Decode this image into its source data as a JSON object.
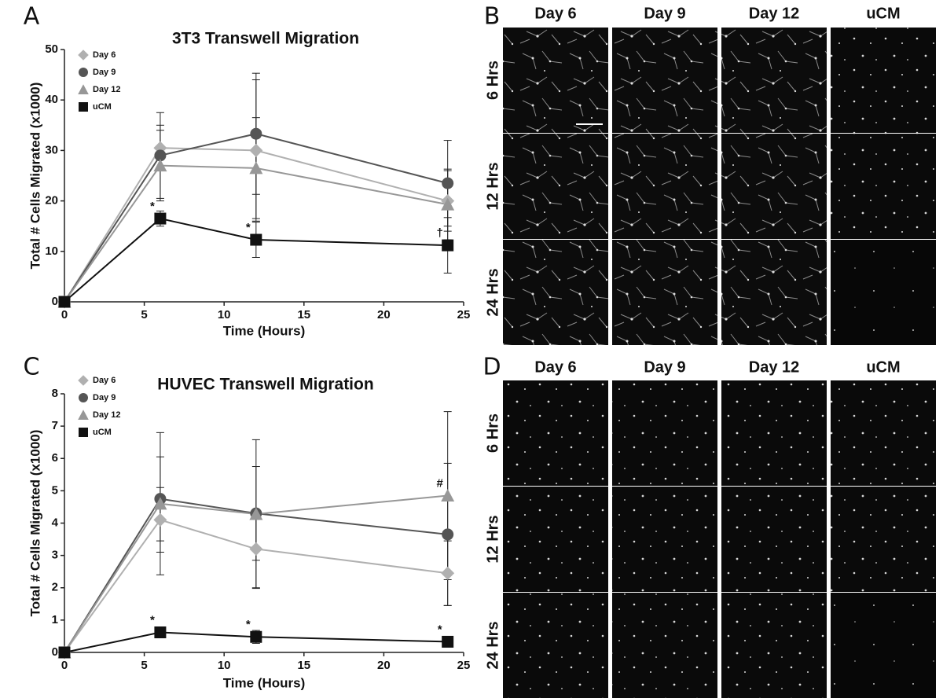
{
  "chart_data": [
    {
      "type": "line",
      "title": "3T3 Transwell Migration",
      "xlabel": "Time (Hours)",
      "ylabel": "Total # Cells Migrated (x1000)",
      "x": [
        0,
        6,
        12,
        24
      ],
      "xlim": [
        0,
        25
      ],
      "xticks": [
        0,
        5,
        10,
        15,
        20,
        25
      ],
      "ylim": [
        0,
        50
      ],
      "yticks": [
        0,
        10,
        20,
        30,
        40,
        50
      ],
      "legend": "upper left",
      "series": [
        {
          "name": "Day 6",
          "color": "#b0b0b0",
          "marker": "diamond",
          "values": [
            0,
            30.5,
            30,
            20
          ],
          "errors": [
            0,
            4.5,
            14,
            6
          ],
          "annotations": [
            null,
            null,
            null,
            null
          ]
        },
        {
          "name": "Day 9",
          "color": "#555555",
          "marker": "circle",
          "values": [
            0,
            29,
            33.3,
            23.5
          ],
          "errors": [
            0,
            8.5,
            12,
            8.5
          ],
          "annotations": [
            null,
            null,
            null,
            null
          ]
        },
        {
          "name": "Day 12",
          "color": "#979797",
          "marker": "triangle",
          "values": [
            0,
            27,
            26.5,
            19.3
          ],
          "errors": [
            0,
            7,
            10,
            7
          ],
          "annotations": [
            null,
            null,
            null,
            null
          ]
        },
        {
          "name": "uCM",
          "color": "#111111",
          "marker": "square",
          "values": [
            0,
            16.5,
            12.3,
            11.2
          ],
          "errors": [
            0,
            1.5,
            3.5,
            5.5
          ],
          "annotations": [
            null,
            "*",
            "*",
            "†"
          ]
        }
      ]
    },
    {
      "type": "line",
      "title": "HUVEC Transwell Migration",
      "xlabel": "Time (Hours)",
      "ylabel": "Total # Cells Migrated (x1000)",
      "x": [
        0,
        6,
        12,
        24
      ],
      "xlim": [
        0,
        25
      ],
      "xticks": [
        0,
        5,
        10,
        15,
        20,
        25
      ],
      "ylim": [
        0,
        8
      ],
      "yticks": [
        0,
        1,
        2,
        3,
        4,
        5,
        6,
        7,
        8
      ],
      "legend": "upper left",
      "series": [
        {
          "name": "Day 6",
          "color": "#b0b0b0",
          "marker": "diamond",
          "values": [
            0,
            4.1,
            3.2,
            2.45
          ],
          "errors": [
            0,
            1.0,
            1.2,
            1.0
          ],
          "annotations": [
            null,
            null,
            null,
            null
          ]
        },
        {
          "name": "Day 9",
          "color": "#555555",
          "marker": "circle",
          "values": [
            0,
            4.75,
            4.3,
            3.65
          ],
          "errors": [
            0,
            1.3,
            1.45,
            2.2
          ],
          "annotations": [
            null,
            null,
            null,
            null
          ]
        },
        {
          "name": "Day 12",
          "color": "#979797",
          "marker": "triangle",
          "values": [
            0,
            4.6,
            4.28,
            4.85
          ],
          "errors": [
            0,
            2.2,
            2.3,
            2.6
          ],
          "annotations": [
            null,
            null,
            null,
            "#"
          ]
        },
        {
          "name": "uCM",
          "color": "#111111",
          "marker": "square",
          "values": [
            0,
            0.62,
            0.48,
            0.33
          ],
          "errors": [
            0,
            0.08,
            0.2,
            0.08
          ],
          "annotations": [
            null,
            "*",
            "*",
            "*"
          ]
        }
      ]
    }
  ],
  "panels": {
    "letters": [
      "A",
      "B",
      "C",
      "D"
    ],
    "grids": [
      {
        "columns": [
          "Day 6",
          "Day 9",
          "Day 12",
          "uCM"
        ],
        "rows": [
          "6 Hrs",
          "12 Hrs",
          "24 Hrs"
        ]
      },
      {
        "columns": [
          "Day 6",
          "Day 9",
          "Day 12",
          "uCM"
        ],
        "rows": [
          "6 Hrs",
          "12 Hrs",
          "24 Hrs"
        ]
      }
    ]
  }
}
